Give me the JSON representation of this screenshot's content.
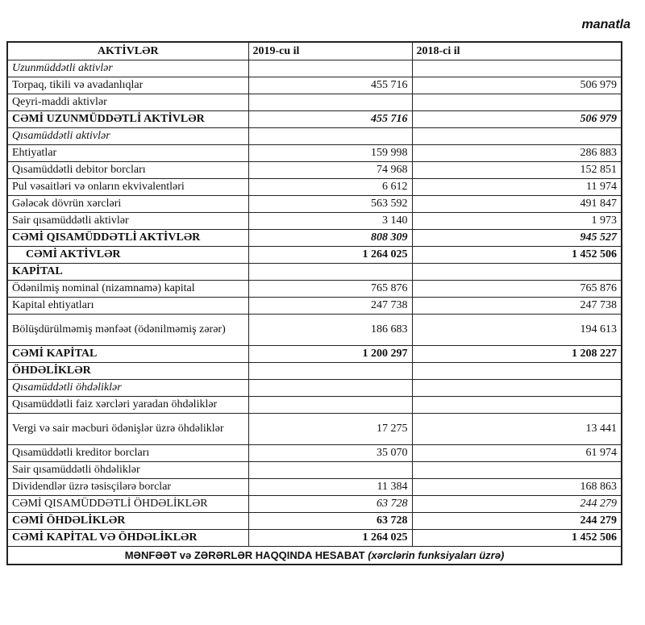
{
  "unit_label": "manatla",
  "columns": [
    "AKTİVLƏR",
    "2019-cu il",
    "2018-ci il"
  ],
  "rows": [
    {
      "label": "Uzunmüddətli aktivlər",
      "y2019": "",
      "y2018": "",
      "style": "sec"
    },
    {
      "label": "Torpaq, tikili və avadanlıqlar",
      "y2019": "455 716",
      "y2018": "506 979",
      "style": ""
    },
    {
      "label": "Qeyri-maddi aktivlər",
      "y2019": "",
      "y2018": "",
      "style": ""
    },
    {
      "label": "CƏMİ UZUNMÜDDƏTLİ  AKTİVLƏR",
      "y2019": "455 716",
      "y2018": "506 979",
      "style": "tot"
    },
    {
      "label": "Qısamüddətli aktivlər",
      "y2019": "",
      "y2018": "",
      "style": "sec"
    },
    {
      "label": "Ehtiyatlar",
      "y2019": "159 998",
      "y2018": "286 883",
      "style": ""
    },
    {
      "label": "Qısamüddətli debitor borcları",
      "y2019": "74 968",
      "y2018": "152 851",
      "style": ""
    },
    {
      "label": "Pul vəsaitləri və onların ekvivalentləri",
      "y2019": "6 612",
      "y2018": "11 974",
      "style": ""
    },
    {
      "label": "Gələcək dövrün xərcləri",
      "y2019": "563 592",
      "y2018": "491 847",
      "style": ""
    },
    {
      "label": "Sair qısamüddətli aktivlər",
      "y2019": "3 140",
      "y2018": "1 973",
      "style": ""
    },
    {
      "label": "CƏMİ  QISAMÜDDƏTLİ  AKTİVLƏR",
      "y2019": "808 309",
      "y2018": "945 527",
      "style": "tot"
    },
    {
      "label": "CƏMİ AKTİVLƏR",
      "y2019": "1 264 025",
      "y2018": "1 452 506",
      "style": "totb ind"
    },
    {
      "label": "KAPİTAL",
      "y2019": "",
      "y2018": "",
      "style": "head"
    },
    {
      "label": "Ödənilmiş nominal (nizamnamə) kapital",
      "y2019": "765 876",
      "y2018": "765 876",
      "style": ""
    },
    {
      "label": "Kapital ehtiyatları",
      "y2019": "247 738",
      "y2018": "247 738",
      "style": ""
    },
    {
      "label": "Bölüşdürülməmiş mənfəət (ödənilməmiş zərər)",
      "y2019": "186 683",
      "y2018": "194 613",
      "style": "two"
    },
    {
      "label": "CƏMİ KAPİTAL",
      "y2019": "1 200 297",
      "y2018": "1 208 227",
      "style": "totb"
    },
    {
      "label": "ÖHDƏLİKLƏR",
      "y2019": "",
      "y2018": "",
      "style": "head"
    },
    {
      "label": "Qısamüddətli öhdəliklər",
      "y2019": "",
      "y2018": "",
      "style": "sec"
    },
    {
      "label": "Qısamüddətli faiz xərcləri yaradan öhdəliklər",
      "y2019": "",
      "y2018": "",
      "style": ""
    },
    {
      "label": "Vergi və sair məcburi ödənişlər üzrə öhdəliklər",
      "y2019": "17 275",
      "y2018": "13 441",
      "style": "two"
    },
    {
      "label": "Qısamüddətli kreditor borcları",
      "y2019": "35 070",
      "y2018": "61 974",
      "style": ""
    },
    {
      "label": "Sair qısamüddətli öhdəliklər",
      "y2019": "",
      "y2018": "",
      "style": ""
    },
    {
      "label": "Dividendlər üzrə təsisçilərə borclar",
      "y2019": "11 384",
      "y2018": "168 863",
      "style": ""
    },
    {
      "label": "CƏMİ  QISAMÜDDƏTLİ ÖHDƏLİKLƏR",
      "y2019": "63 728",
      "y2018": "244 279",
      "style": "sub"
    },
    {
      "label": "CƏMİ  ÖHDƏLİKLƏR",
      "y2019": "63 728",
      "y2018": "244 279",
      "style": "totb"
    },
    {
      "label": "CƏMİ  KAPİTAL  VƏ  ÖHDƏLİKLƏR",
      "y2019": "1 264 025",
      "y2018": "1 452 506",
      "style": "totb"
    }
  ],
  "footer": {
    "title": "MƏNFƏƏT  və  ZƏRƏRLƏR  HAQQINDA HESABAT",
    "subtitle": "(xərclərin funksiyaları üzrə)"
  }
}
